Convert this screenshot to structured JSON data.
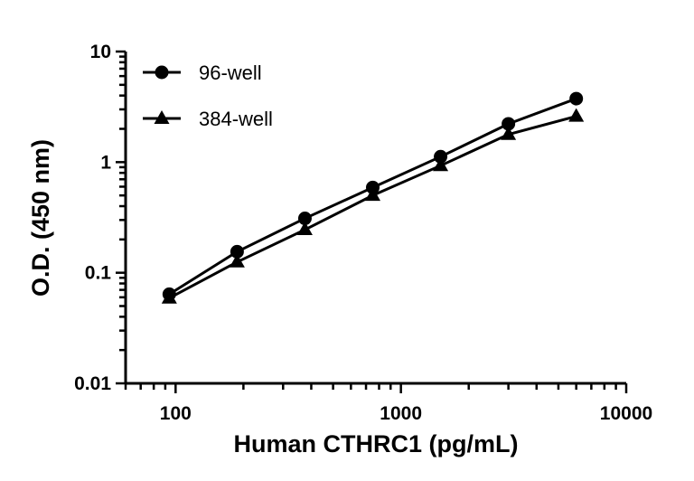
{
  "chart_data": {
    "type": "line",
    "xlabel": "Human CTHRC1 (pg/mL)",
    "ylabel": "O.D. (450 nm)",
    "x_scale": "log",
    "y_scale": "log",
    "xlim": [
      60,
      10000
    ],
    "ylim": [
      0.01,
      10
    ],
    "x_tick_labels": [
      "100",
      "1000",
      "10000"
    ],
    "y_tick_labels": [
      "0.01",
      "0.1",
      "1",
      "10"
    ],
    "grid": false,
    "legend_position": "top-left",
    "x": [
      93.75,
      187.5,
      375,
      750,
      1500,
      3000,
      6000
    ],
    "series": [
      {
        "name": "96-well",
        "marker": "circle",
        "color": "#000000",
        "values": [
          0.064,
          0.155,
          0.31,
          0.59,
          1.12,
          2.22,
          3.75
        ]
      },
      {
        "name": "384-well",
        "marker": "triangle",
        "color": "#000000",
        "values": [
          0.059,
          0.125,
          0.245,
          0.5,
          0.93,
          1.78,
          2.6
        ]
      }
    ]
  }
}
